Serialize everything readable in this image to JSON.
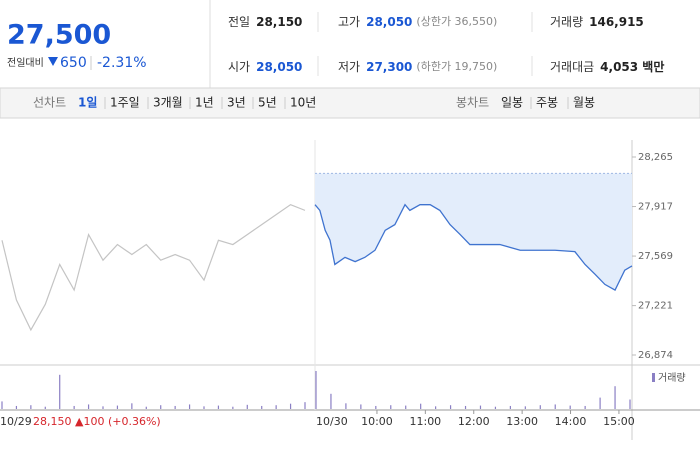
{
  "header": {
    "price": "27,500",
    "change_label": "전일대비",
    "change": "650",
    "change_pct": "-2.31%",
    "stats": [
      {
        "label": "전일",
        "value": "28,150",
        "color": "#222222"
      },
      {
        "label": "고가",
        "value": "28,050",
        "note": "(상한가 36,550)",
        "color": "#1a57d3"
      },
      {
        "label": "거래량",
        "value": "146,915",
        "color": "#222222"
      },
      {
        "label": "시가",
        "value": "28,050",
        "color": "#1a57d3"
      },
      {
        "label": "저가",
        "value": "27,300",
        "note": "(하한가 19,750)",
        "color": "#1a57d3"
      },
      {
        "label": "거래대금",
        "value": "4,053 백만",
        "color": "#222222"
      }
    ]
  },
  "tabs": {
    "line_label": "선차트",
    "line_periods": [
      "1일",
      "1주일",
      "3개월",
      "1년",
      "3년",
      "5년",
      "10년"
    ],
    "active_index": 0,
    "candle_label": "봉차트",
    "candle_periods": [
      "일봉",
      "주봉",
      "월봉"
    ]
  },
  "chart_data": {
    "type": "line",
    "baseline": 28150,
    "ylim": [
      26874,
      28265
    ],
    "yticks": [
      {
        "value": 28265,
        "label": "28,265"
      },
      {
        "value": 27917,
        "label": "27,917"
      },
      {
        "value": 27569,
        "label": "27,569"
      },
      {
        "value": 27221,
        "label": "27,221"
      },
      {
        "value": 26874,
        "label": "26,874"
      }
    ],
    "prev_day": {
      "label": "10/29",
      "info": "28,150 ▲100 (+0.36%)",
      "color": "#c4c4c4",
      "values": [
        27680,
        27260,
        27050,
        27230,
        27510,
        27330,
        27720,
        27540,
        27650,
        27580,
        27650,
        27540,
        27580,
        27540,
        27400,
        27680,
        27650,
        27720,
        27790,
        27860,
        27930,
        27890
      ]
    },
    "today": {
      "label": "10/30",
      "color": "#3f73cf",
      "fill": "#e3edfb",
      "xlim": [
        8.72,
        15.27
      ],
      "xticks": [
        {
          "value": 10,
          "label": "10:00"
        },
        {
          "value": 11,
          "label": "11:00"
        },
        {
          "value": 12,
          "label": "12:00"
        },
        {
          "value": 13,
          "label": "13:00"
        },
        {
          "value": 14,
          "label": "14:00"
        },
        {
          "value": 15,
          "label": "15:00"
        }
      ],
      "x": [
        8.72,
        8.82,
        8.93,
        9.03,
        9.13,
        9.34,
        9.55,
        9.75,
        9.96,
        10.17,
        10.37,
        10.58,
        10.68,
        10.89,
        11.1,
        11.3,
        11.51,
        11.72,
        11.92,
        12.13,
        12.54,
        12.96,
        13.37,
        13.68,
        14.09,
        14.3,
        14.51,
        14.71,
        14.92,
        15.02,
        15.12,
        15.27
      ],
      "values": [
        27930,
        27890,
        27750,
        27680,
        27510,
        27560,
        27530,
        27560,
        27610,
        27750,
        27790,
        27930,
        27890,
        27930,
        27930,
        27890,
        27790,
        27720,
        27650,
        27650,
        27650,
        27610,
        27610,
        27610,
        27600,
        27510,
        27440,
        27370,
        27330,
        27400,
        27470,
        27500
      ]
    },
    "volume": {
      "label": "거래량",
      "color": "#8a7fc4",
      "ylim": [
        0,
        100
      ],
      "prev": [
        20,
        8,
        10,
        6,
        90,
        8,
        12,
        7,
        9,
        15,
        6,
        10,
        8,
        12,
        7,
        9,
        6,
        11,
        8,
        10,
        14,
        18
      ],
      "today": [
        100,
        40,
        15,
        12,
        8,
        10,
        9,
        14,
        7,
        10,
        8,
        9,
        6,
        8,
        7,
        10,
        12,
        9,
        8,
        30,
        60,
        25
      ]
    }
  }
}
